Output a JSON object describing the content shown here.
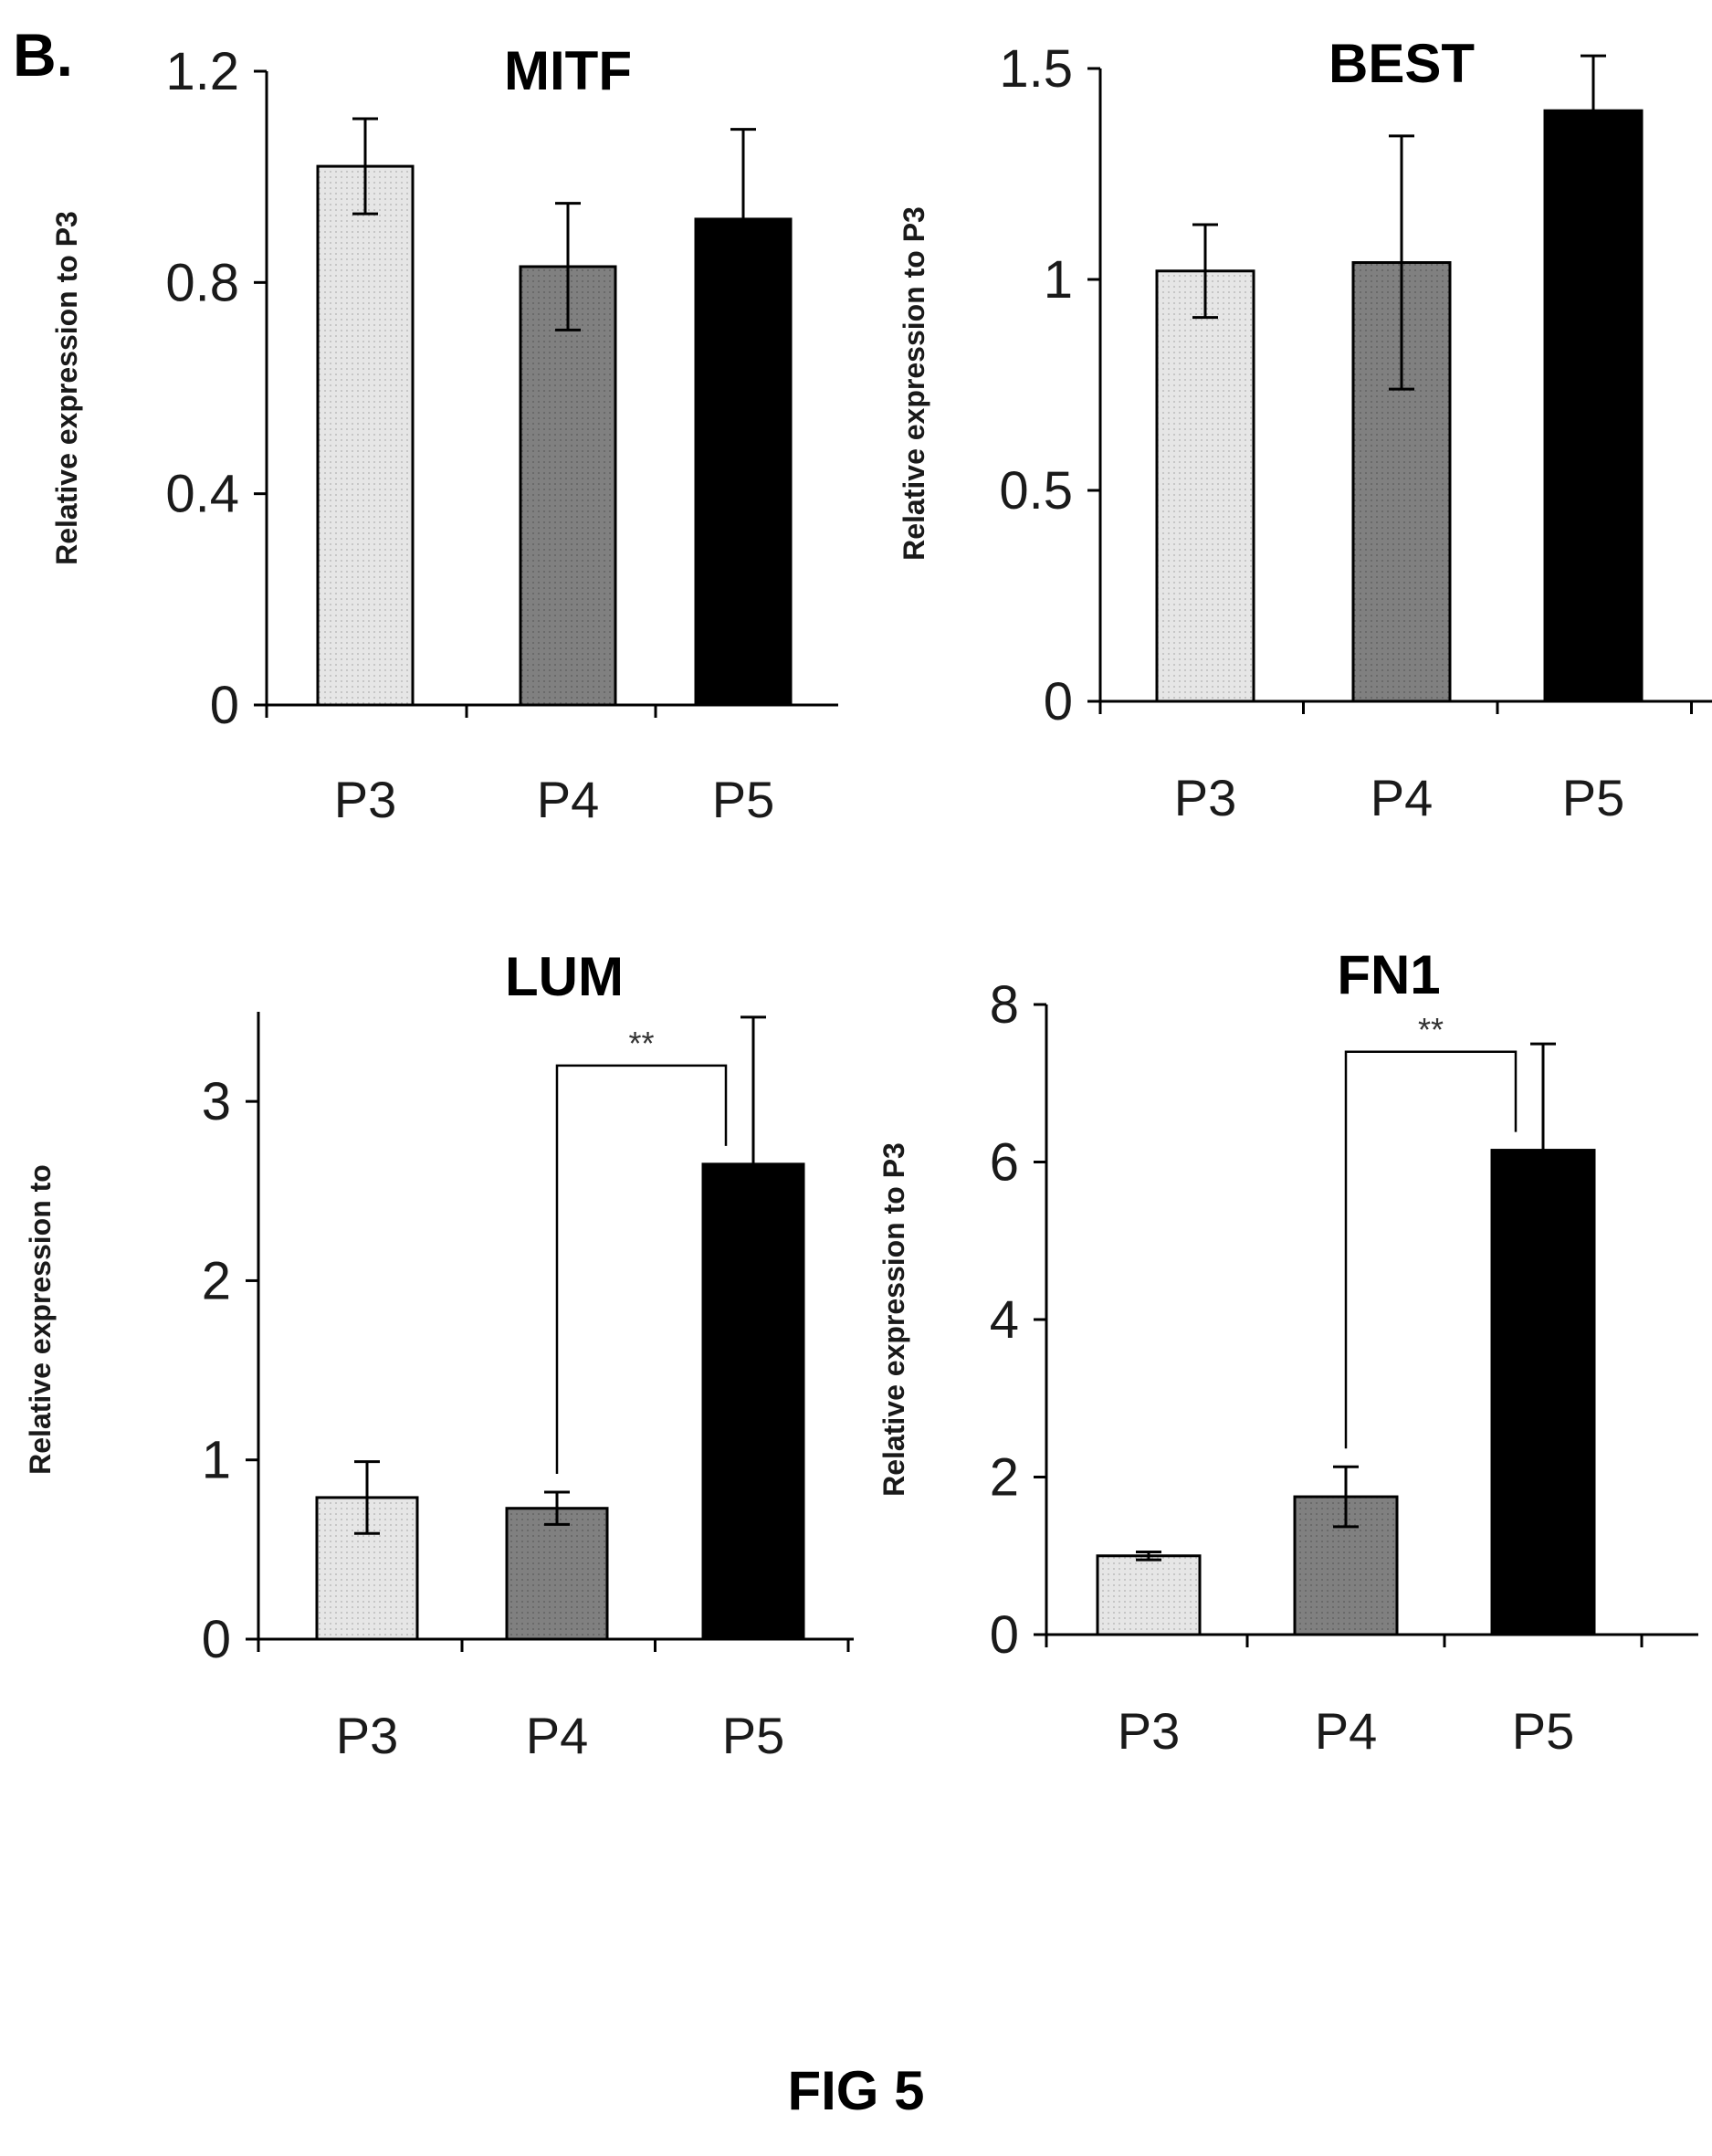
{
  "panel_label": "B.",
  "caption": "FIG 5",
  "colors": {
    "P3": "#e6e6e6",
    "P4": "#808080",
    "P5": "#000000",
    "axis": "#000000"
  },
  "chart_data": [
    {
      "type": "bar",
      "title": "MITF",
      "ylabel": "Relative expression to P3",
      "categories": [
        "P3",
        "P4",
        "P5"
      ],
      "values": [
        1.02,
        0.83,
        0.92
      ],
      "errors": [
        0.09,
        0.12,
        0.17
      ],
      "ylim": [
        0,
        1.2
      ],
      "yticks": [
        0,
        0.4,
        0.8,
        1.2
      ],
      "ytick_labels": [
        "0",
        "0.4",
        "0.8",
        "1.2"
      ],
      "significance": []
    },
    {
      "type": "bar",
      "title": "BEST",
      "ylabel": "Relative expression to P3",
      "categories": [
        "P3",
        "P4",
        "P5"
      ],
      "values": [
        1.02,
        1.04,
        1.4
      ],
      "errors": [
        0.11,
        0.3,
        0.13
      ],
      "ylim": [
        0,
        1.5
      ],
      "yticks": [
        0,
        0.5,
        1,
        1.5
      ],
      "ytick_labels": [
        "0",
        "0.5",
        "1",
        "1.5"
      ],
      "significance": []
    },
    {
      "type": "bar",
      "title": "LUM",
      "ylabel": "Relative expression to",
      "categories": [
        "P3",
        "P4",
        "P5"
      ],
      "values": [
        0.79,
        0.73,
        2.65
      ],
      "errors": [
        0.2,
        0.09,
        0.82
      ],
      "ylim": [
        0,
        3.5
      ],
      "yticks": [
        0,
        1,
        2,
        3
      ],
      "ytick_labels": [
        "0",
        "1",
        "2",
        "3"
      ],
      "significance": [
        {
          "from": "P4",
          "to": "P5",
          "label": "**",
          "y": 3.2
        }
      ]
    },
    {
      "type": "bar",
      "title": "FN1",
      "ylabel": "Relative expression to P3",
      "categories": [
        "P3",
        "P4",
        "P5"
      ],
      "values": [
        1.0,
        1.75,
        6.15
      ],
      "errors": [
        0.05,
        0.38,
        1.35
      ],
      "ylim": [
        0,
        8
      ],
      "yticks": [
        0,
        2,
        4,
        6,
        8
      ],
      "ytick_labels": [
        "0",
        "2",
        "4",
        "6",
        "8"
      ],
      "significance": [
        {
          "from": "P4",
          "to": "P5",
          "label": "**",
          "y": 7.4
        }
      ]
    }
  ]
}
